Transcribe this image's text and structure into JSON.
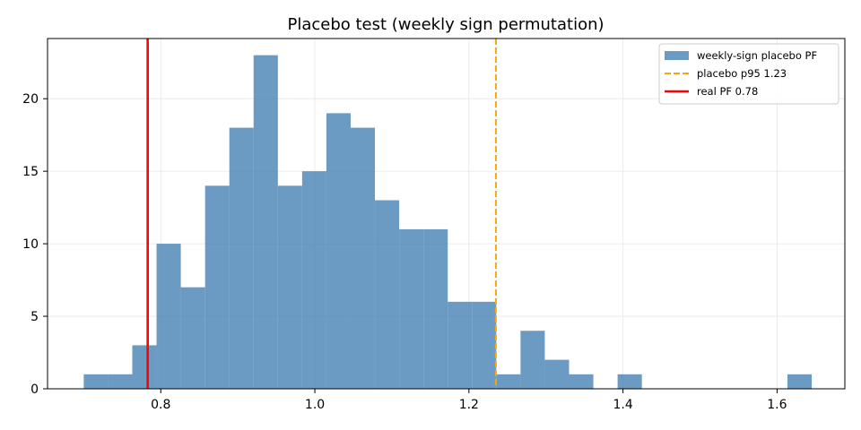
{
  "chart_data": {
    "type": "bar",
    "title": "Placebo test (weekly sign permutation)",
    "xlabel": "",
    "ylabel": "",
    "xlim": [
      0.653,
      1.688
    ],
    "ylim": [
      0,
      24.15
    ],
    "grid": true,
    "legend_position": "top-right",
    "bins": {
      "start": 0.7,
      "width": 0.0315,
      "counts": [
        1,
        1,
        3,
        10,
        7,
        14,
        18,
        23,
        14,
        15,
        19,
        18,
        13,
        11,
        11,
        6,
        6,
        1,
        4,
        2,
        1,
        0,
        1,
        0,
        0,
        0,
        0,
        0,
        0,
        1
      ]
    },
    "x_ticks": [
      {
        "value": 0.8,
        "label": "0.8"
      },
      {
        "value": 1.0,
        "label": "1.0"
      },
      {
        "value": 1.2,
        "label": "1.2"
      },
      {
        "value": 1.4,
        "label": "1.4"
      },
      {
        "value": 1.6,
        "label": "1.6"
      }
    ],
    "y_ticks": [
      {
        "value": 0,
        "label": "0"
      },
      {
        "value": 5,
        "label": "5"
      },
      {
        "value": 10,
        "label": "10"
      },
      {
        "value": 15,
        "label": "15"
      },
      {
        "value": 20,
        "label": "20"
      }
    ],
    "reference_lines": [
      {
        "name": "placebo p95 1.23",
        "x": 1.235,
        "color": "#ffa500",
        "style": "dashed"
      },
      {
        "name": "real PF 0.78",
        "x": 0.783,
        "color": "#ff0000",
        "style": "solid"
      }
    ],
    "series": [
      {
        "name": "weekly-sign placebo PF",
        "color": "#4682b4"
      }
    ]
  }
}
